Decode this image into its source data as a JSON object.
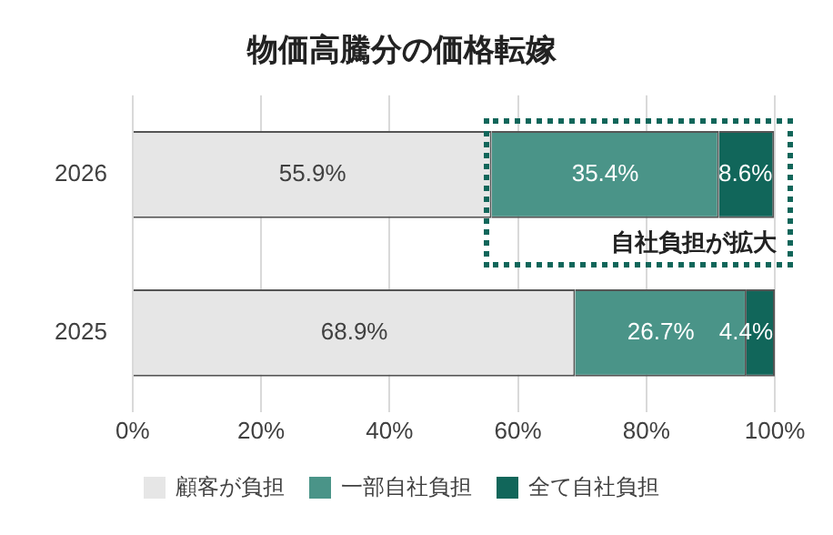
{
  "chart_data": {
    "type": "bar",
    "orientation": "horizontal",
    "stacked": true,
    "title": "物価高騰分の価格転嫁",
    "categories": [
      "2026",
      "2025"
    ],
    "series": [
      {
        "name": "顧客が負担",
        "color": "#e6e6e6",
        "values": [
          55.9,
          68.9
        ],
        "value_labels": [
          "55.9%",
          "68.9%"
        ]
      },
      {
        "name": "一部自社負担",
        "color": "#4a9488",
        "values": [
          35.4,
          26.7
        ],
        "value_labels": [
          "35.4%",
          "26.7%"
        ]
      },
      {
        "name": "全て自社負担",
        "color": "#11665a",
        "values": [
          8.6,
          4.4
        ],
        "value_labels": [
          "8.6%",
          "4.4%"
        ]
      }
    ],
    "xlim": [
      0,
      100
    ],
    "xticks": [
      {
        "value": 0,
        "label": "0%"
      },
      {
        "value": 20,
        "label": "20%"
      },
      {
        "value": 40,
        "label": "40%"
      },
      {
        "value": 60,
        "label": "60%"
      },
      {
        "value": 80,
        "label": "80%"
      },
      {
        "value": 100,
        "label": "100%"
      }
    ],
    "grid": "x",
    "legend": "bottom",
    "annotations": [
      "自社負担が拡大"
    ]
  }
}
